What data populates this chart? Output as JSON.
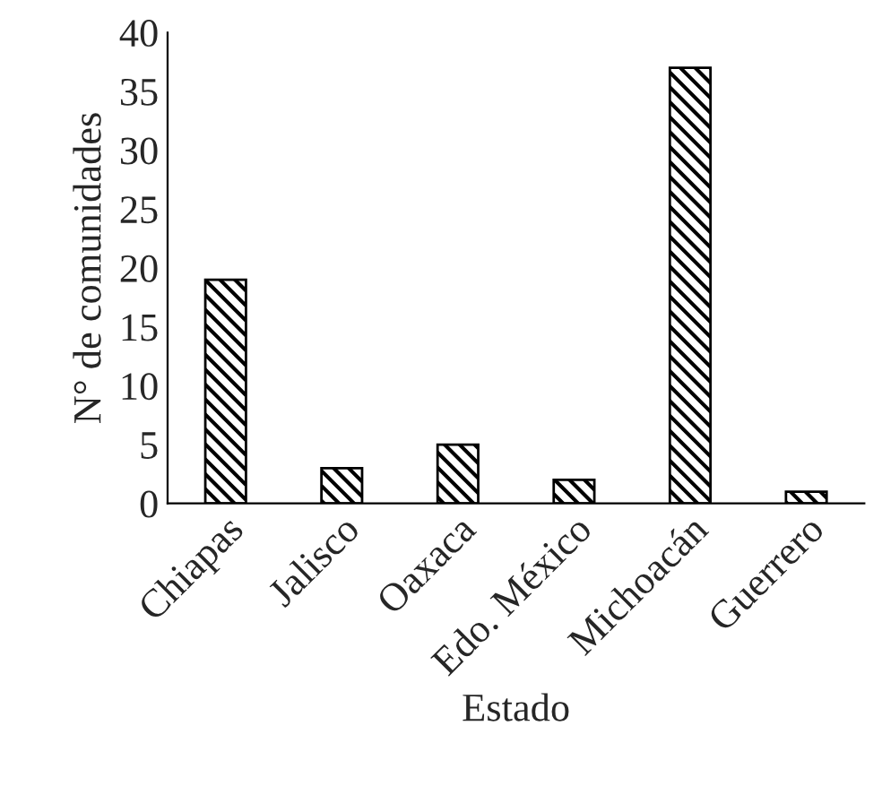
{
  "chart_data": {
    "type": "bar",
    "xlabel": "Estado",
    "ylabel": "N° de comunidades",
    "categories": [
      "Chiapas",
      "Jalisco",
      "Oaxaca",
      "Edo. México",
      "Michoacán",
      "Guerrero"
    ],
    "values": [
      19,
      3,
      5,
      2,
      37,
      1
    ],
    "color": "#000000",
    "ylim": [
      0,
      40
    ],
    "yticks": [
      0,
      5,
      10,
      15,
      20,
      25,
      30,
      35,
      40
    ],
    "grid": false,
    "legend": false
  }
}
